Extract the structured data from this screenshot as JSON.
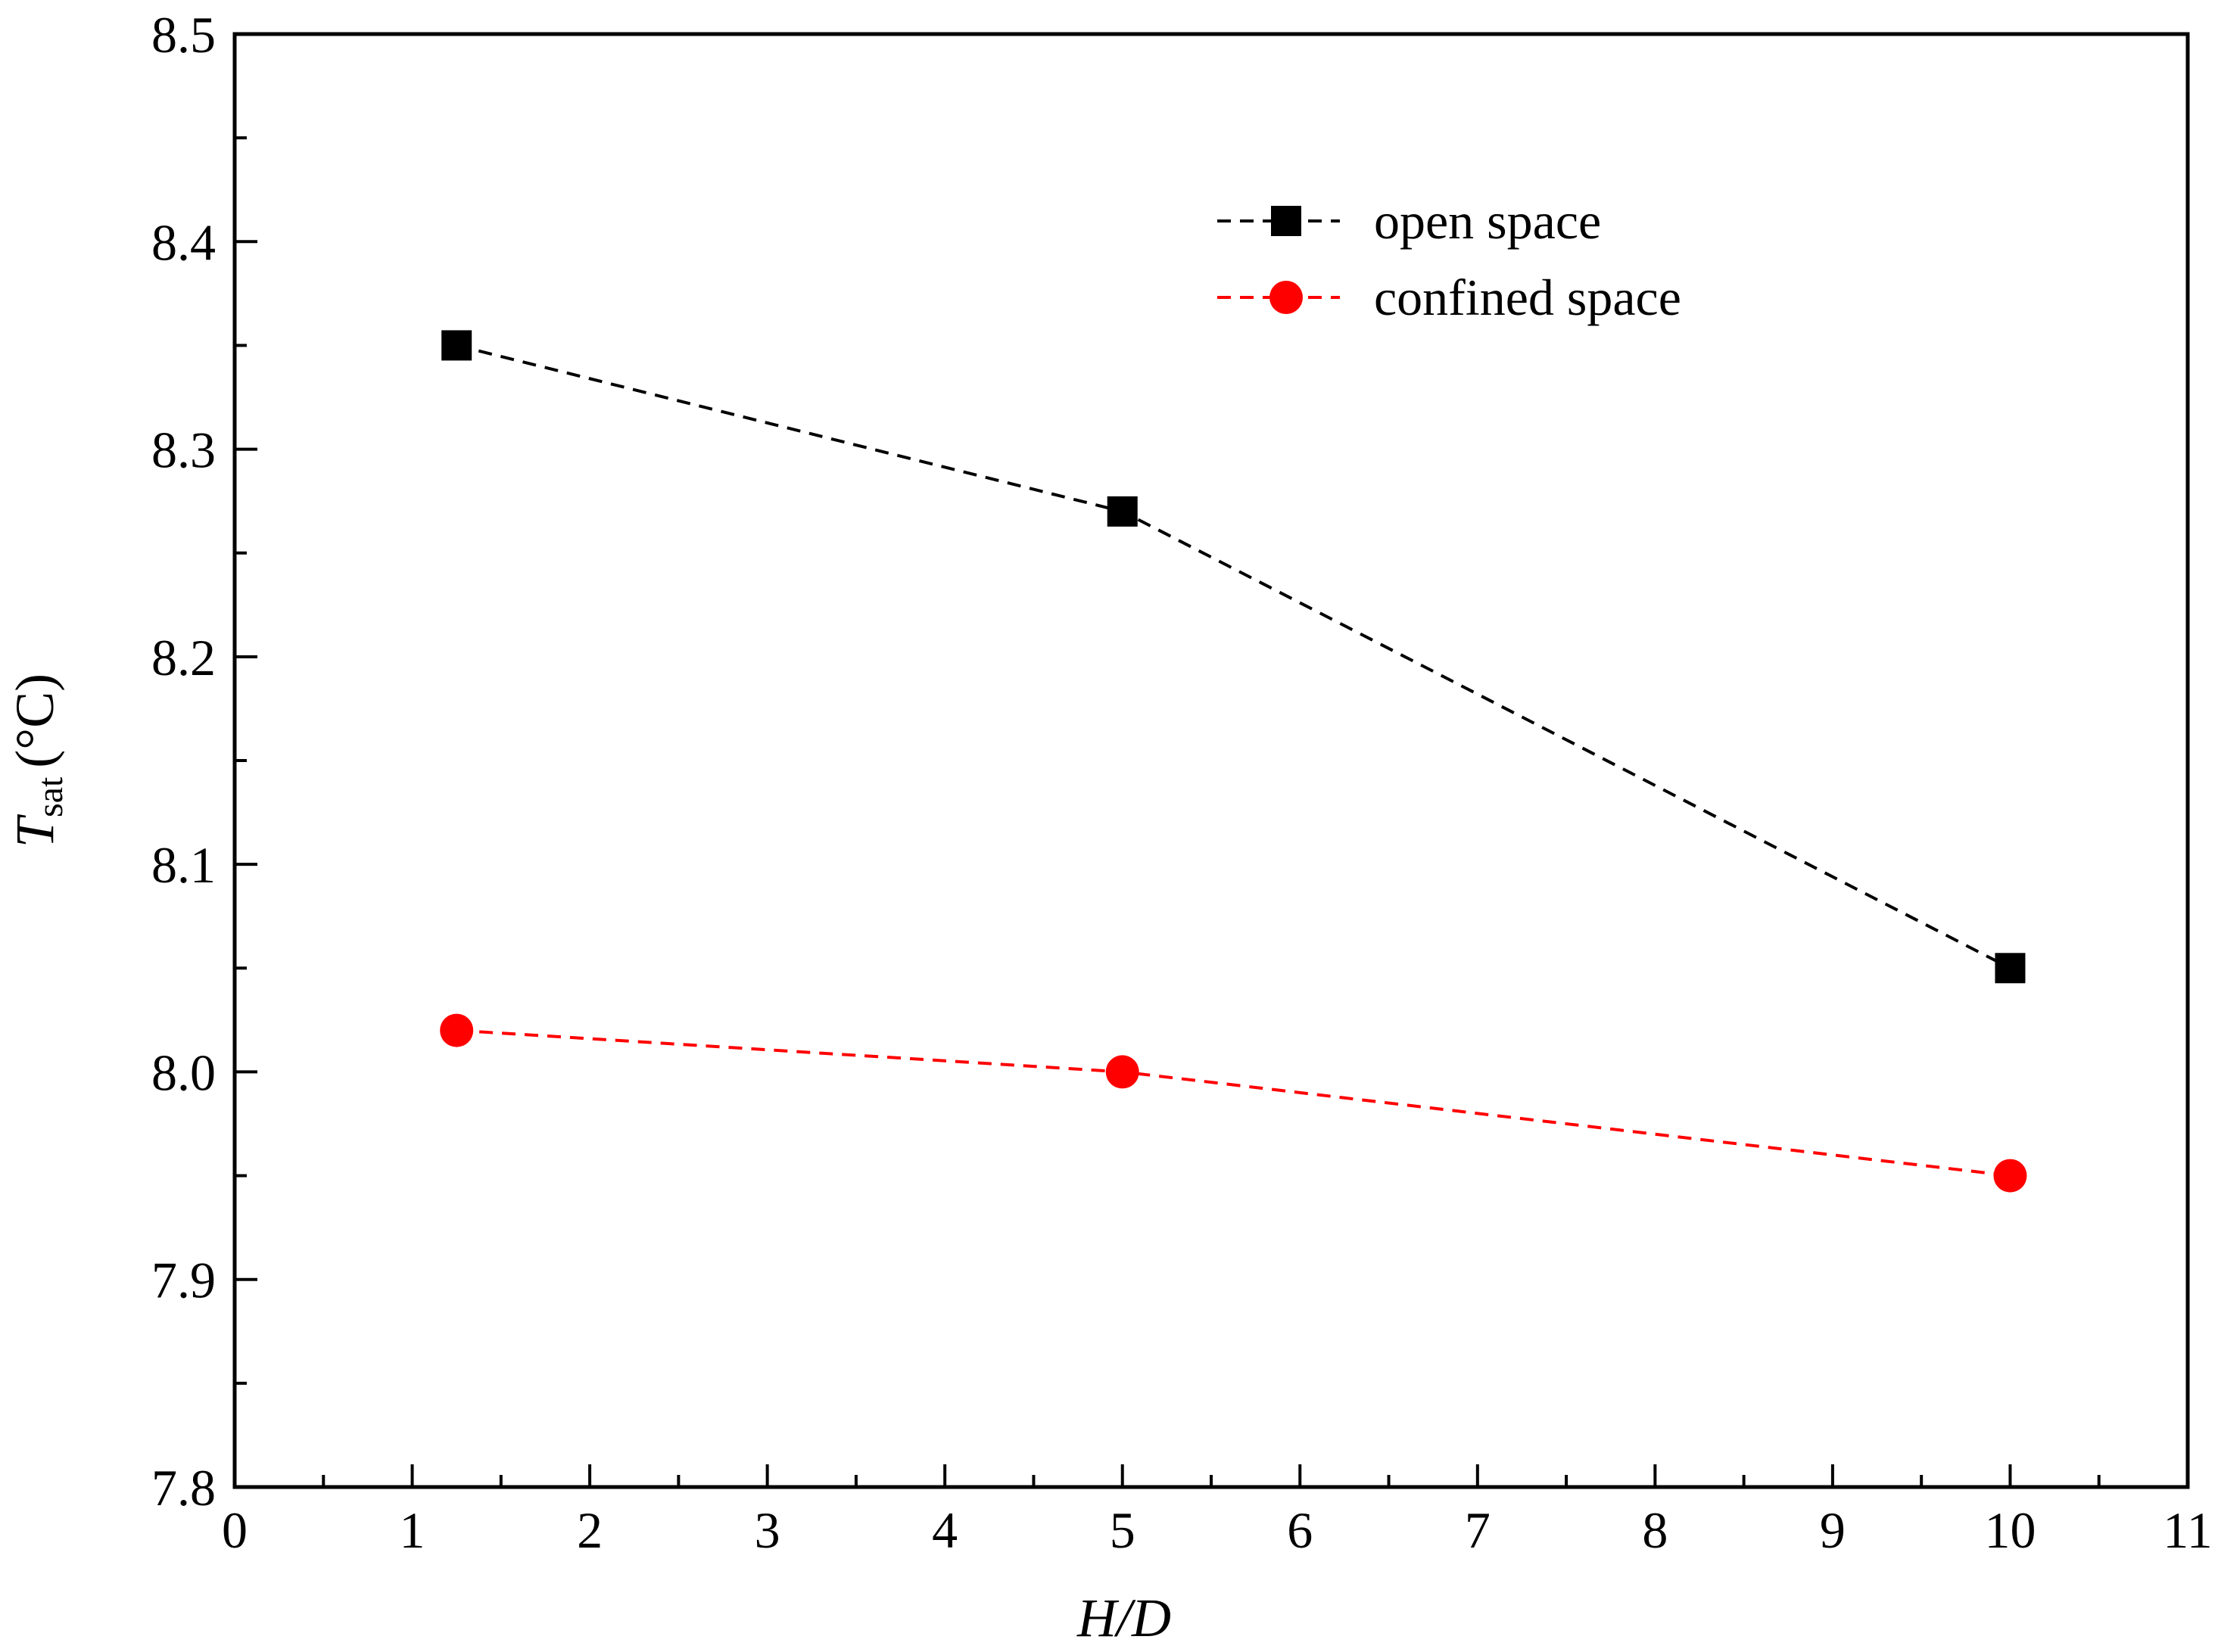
{
  "chart_data": {
    "type": "line",
    "title": "",
    "xlabel": "H/D",
    "ylabel": {
      "symbol": "T",
      "subscript": "sat",
      "unit": "(°C)"
    },
    "xlim": [
      0,
      11
    ],
    "ylim": [
      7.8,
      8.5
    ],
    "x_ticks": [
      "0",
      "1",
      "2",
      "3",
      "4",
      "5",
      "6",
      "7",
      "8",
      "9",
      "10",
      "11"
    ],
    "y_ticks": [
      "7.8",
      "7.9",
      "8.0",
      "8.1",
      "8.2",
      "8.3",
      "8.4",
      "8.5"
    ],
    "grid": false,
    "legend_position": "top-right",
    "series": [
      {
        "name": "open space",
        "marker": "square",
        "color": "#000000",
        "line": "dashed",
        "x": [
          1.25,
          5,
          10
        ],
        "y": [
          8.35,
          8.27,
          8.05
        ]
      },
      {
        "name": "confined space",
        "marker": "circle",
        "color": "#ff0000",
        "line": "dashed",
        "x": [
          1.25,
          5,
          10
        ],
        "y": [
          8.02,
          8.0,
          7.95
        ]
      }
    ]
  }
}
